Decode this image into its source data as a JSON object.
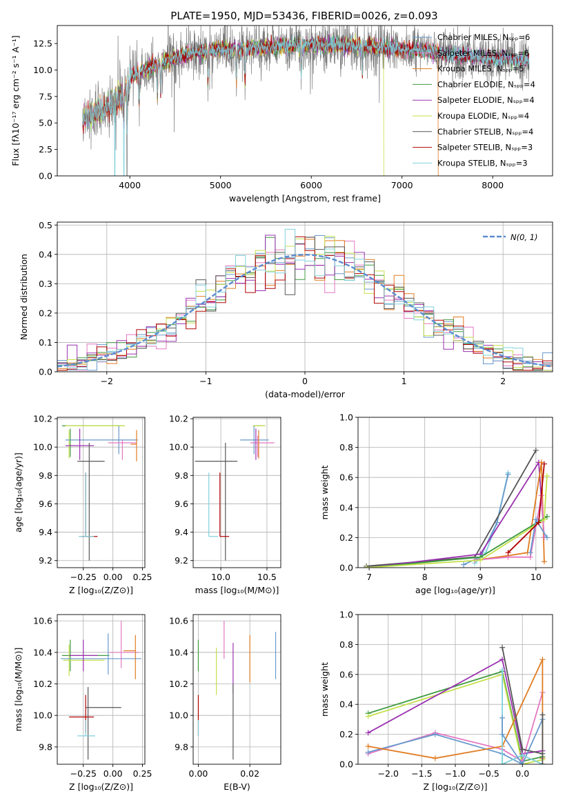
{
  "colors": {
    "palette": [
      "#777777",
      "#e377c2",
      "#ff7f0e",
      "#2ca02c",
      "#9467bd",
      "#bcbd22",
      "#444444",
      "#a00000",
      "#17becf"
    ],
    "overlay": [
      "#6699cc",
      "#e377c2",
      "#e07b20",
      "#3c9a3c",
      "#9b30b0",
      "#c4e04a",
      "#555555",
      "#b00000",
      "#80d0dc"
    ],
    "normal_curve": "#5b8bd0"
  },
  "chart_data": [
    {
      "id": "spectrum",
      "type": "line",
      "title": "PLATE=1950, MJD=53436, FIBERID=0026, z=0.093",
      "xlabel": "wavelength [Angstrom, rest frame]",
      "ylabel": "Flux [fλ10⁻¹⁷ erg cm⁻² s⁻¹ A⁻¹]",
      "xlim": [
        3200,
        8660
      ],
      "ylim": [
        0,
        14.2
      ],
      "xticks": [
        4000,
        5000,
        6000,
        7000,
        8000
      ],
      "yticks": [
        0.0,
        2.5,
        5.0,
        7.5,
        10.0,
        12.5
      ],
      "grid": false,
      "legend_position": "top-right",
      "legend": [
        {
          "label": "Chabrier MILES, Nₛₚₚ=6"
        },
        {
          "label": "Salpeter MILES, Nₛₚₚ=6"
        },
        {
          "label": "Kroupa MILES, Nₛₚₚ=5"
        },
        {
          "label": "Chabrier ELODIE, Nₛₚₚ=4"
        },
        {
          "label": "Salpeter ELODIE, Nₛₚₚ=4"
        },
        {
          "label": "Kroupa ELODIE, Nₛₚₚ=4"
        },
        {
          "label": "Chabrier STELIB, Nₛₚₚ=4"
        },
        {
          "label": "Salpeter STELIB, Nₛₚₚ=3"
        },
        {
          "label": "Kroupa STELIB, Nₛₚₚ=3"
        }
      ],
      "data_range": [
        3480,
        8400
      ],
      "continuum": {
        "x": [
          3480,
          3600,
          3800,
          4000,
          4200,
          4400,
          4600,
          4800,
          5000,
          5200,
          5500,
          6000,
          6500,
          7000,
          7400,
          7600,
          8000,
          8400
        ],
        "y": [
          6.2,
          6.8,
          7.6,
          9.4,
          10.2,
          10.9,
          11.4,
          11.8,
          11.9,
          12.0,
          12.2,
          12.4,
          12.3,
          12.0,
          11.6,
          11.4,
          11.1,
          10.9
        ]
      },
      "drops": [
        {
          "x": 3833,
          "series": 8
        },
        {
          "x": 3933,
          "series": 8
        },
        {
          "x": 3968,
          "series": 0
        },
        {
          "x": 6800,
          "series": 5
        },
        {
          "x": 7400,
          "series": 2
        }
      ]
    },
    {
      "id": "residuals",
      "type": "histogram",
      "xlabel": "(data-model)/error",
      "ylabel": "Normed distribution",
      "xlim": [
        -2.5,
        2.5
      ],
      "ylim": [
        0,
        0.51
      ],
      "xticks": [
        -2,
        -1,
        0,
        1,
        2
      ],
      "yticks": [
        0.0,
        0.1,
        0.2,
        0.3,
        0.4,
        0.5
      ],
      "grid": true,
      "bin_width": 0.1,
      "legend_position": "top-right",
      "legend": "N(0, 1)",
      "normal": {
        "mean": 0,
        "sigma": 1
      }
    },
    {
      "id": "age-vs-Z",
      "type": "errorbar",
      "xlabel": "Z [log₁₀(Z/Z⊙)]",
      "ylabel": "age  [log₁₀(age/yr)]",
      "xlim": [
        -0.47,
        0.27
      ],
      "ylim": [
        9.15,
        10.21
      ],
      "xticks": [
        -0.25,
        0.0,
        0.25
      ],
      "xticklabels": [
        "−0.25",
        "0.00",
        "0.25"
      ],
      "yticks": [
        9.2,
        9.4,
        9.6,
        9.8,
        10.0,
        10.2
      ],
      "grid": true,
      "points": [
        {
          "x": -0.1,
          "y": 10.15,
          "xerr": [
            0.33,
            0.2
          ],
          "yerr": [
            0,
            0
          ],
          "series": 3
        },
        {
          "x": -0.1,
          "y": 10.15,
          "xerr": [
            0.3,
            0.2
          ],
          "yerr": [
            0,
            0
          ],
          "series": 5
        },
        {
          "x": -0.36,
          "y": 10.13,
          "xerr": [
            0,
            0
          ],
          "yerr": [
            0.2,
            0
          ],
          "series": 3
        },
        {
          "x": -0.37,
          "y": 10.12,
          "xerr": [
            0,
            0
          ],
          "yerr": [
            0.2,
            0
          ],
          "series": 5
        },
        {
          "x": -0.07,
          "y": 10.05,
          "xerr": [
            0.33,
            0.28
          ],
          "yerr": [
            0,
            0
          ],
          "series": 0
        },
        {
          "x": 0.05,
          "y": 10.05,
          "xerr": [
            0,
            0
          ],
          "yerr": [
            0.1,
            0.1
          ],
          "series": 0
        },
        {
          "x": 0.05,
          "y": 10.03,
          "xerr": [
            0.09,
            0.15
          ],
          "yerr": [
            0,
            0
          ],
          "series": 1
        },
        {
          "x": 0.08,
          "y": 10.03,
          "xerr": [
            0,
            0
          ],
          "yerr": [
            0.12,
            0.02
          ],
          "series": 1
        },
        {
          "x": 0.2,
          "y": 10.02,
          "xerr": [
            0.05,
            0
          ],
          "yerr": [
            0.12,
            0.1
          ],
          "series": 2
        },
        {
          "x": -0.28,
          "y": 10.01,
          "xerr": [
            0.12,
            0.12
          ],
          "yerr": [
            0.1,
            0.12
          ],
          "series": 4
        },
        {
          "x": -0.2,
          "y": 9.9,
          "xerr": [
            0.1,
            0.13
          ],
          "yerr": [
            0.7,
            0.13
          ],
          "series": 6
        },
        {
          "x": -0.23,
          "y": 9.37,
          "xerr": [
            0.04,
            0.1
          ],
          "yerr": [
            0,
            0.45
          ],
          "series": 7
        },
        {
          "x": -0.23,
          "y": 9.37,
          "xerr": [
            0.06,
            0.07
          ],
          "yerr": [
            0,
            0.45
          ],
          "series": 8
        }
      ]
    },
    {
      "id": "age-vs-mass",
      "type": "errorbar",
      "xlabel": "mass [log₁₀(M/M⊙)]",
      "ylabel": "",
      "xlim": [
        9.7,
        10.65
      ],
      "ylim": [
        9.15,
        10.21
      ],
      "xticks": [
        10.0,
        10.5
      ],
      "xticklabels": [
        "10.0",
        "10.5"
      ],
      "yticks": [
        9.2,
        9.4,
        9.6,
        9.8,
        10.0,
        10.2
      ],
      "grid": true,
      "points": [
        {
          "x": 10.35,
          "y": 10.15,
          "xerr": [
            0.0,
            0.13
          ],
          "yerr": [
            0,
            0
          ],
          "series": 3
        },
        {
          "x": 10.35,
          "y": 10.15,
          "xerr": [
            0.0,
            0.13
          ],
          "yerr": [
            0,
            0
          ],
          "series": 5
        },
        {
          "x": 10.36,
          "y": 10.05,
          "xerr": [
            0.15,
            0.16
          ],
          "yerr": [
            0.1,
            0.1
          ],
          "series": 0
        },
        {
          "x": 10.4,
          "y": 10.03,
          "xerr": [
            0.08,
            0.18
          ],
          "yerr": [
            0.1,
            0.05
          ],
          "series": 1
        },
        {
          "x": 10.41,
          "y": 10.02,
          "xerr": [
            0,
            0
          ],
          "yerr": [
            0.1,
            0.1
          ],
          "series": 2
        },
        {
          "x": 10.38,
          "y": 10.01,
          "xerr": [
            0,
            0
          ],
          "yerr": [
            0.1,
            0.12
          ],
          "series": 4
        },
        {
          "x": 10.05,
          "y": 9.9,
          "xerr": [
            0.33,
            0.13
          ],
          "yerr": [
            0.7,
            0.13
          ],
          "series": 6
        },
        {
          "x": 9.99,
          "y": 9.37,
          "xerr": [
            0,
            0.1
          ],
          "yerr": [
            0,
            0.45
          ],
          "series": 7
        },
        {
          "x": 9.87,
          "y": 9.37,
          "xerr": [
            0,
            0.1
          ],
          "yerr": [
            0,
            0.45
          ],
          "series": 8
        }
      ]
    },
    {
      "id": "mass-weight-vs-age",
      "type": "line",
      "xlabel": "age  [log₁₀(age/yr)]",
      "ylabel": "mass weight",
      "xlim": [
        6.8,
        10.3
      ],
      "ylim": [
        0,
        1.0
      ],
      "xticks": [
        7,
        8,
        9,
        10
      ],
      "yticks": [
        0.0,
        0.2,
        0.4,
        0.6,
        0.8,
        1.0
      ],
      "grid": true,
      "series": [
        {
          "color": 8,
          "x": [
            8.9,
            9.1,
            9.3,
            9.5
          ],
          "y": [
            0.03,
            0.1,
            0.3,
            0.63
          ]
        },
        {
          "color": 0,
          "x": [
            8.7,
            9.0,
            9.3,
            9.5
          ],
          "y": [
            0.02,
            0.07,
            0.3,
            0.62
          ]
        },
        {
          "color": 6,
          "x": [
            6.95,
            8.9,
            10.0
          ],
          "y": [
            0.01,
            0.07,
            0.78
          ]
        },
        {
          "color": 4,
          "x": [
            6.95,
            9.0,
            10.05,
            10.15
          ],
          "y": [
            0.0,
            0.09,
            0.7,
            0.2
          ]
        },
        {
          "color": 2,
          "x": [
            8.9,
            9.5,
            9.85,
            10.1,
            10.15
          ],
          "y": [
            0.05,
            0.08,
            0.1,
            0.7,
            0.04
          ]
        },
        {
          "color": 1,
          "x": [
            8.9,
            9.5,
            9.9,
            10.1,
            10.15
          ],
          "y": [
            0.05,
            0.07,
            0.07,
            0.48,
            0.2
          ]
        },
        {
          "color": 3,
          "x": [
            6.95,
            9.0,
            10.2
          ],
          "y": [
            0.0,
            0.07,
            0.34
          ]
        },
        {
          "color": 5,
          "x": [
            6.95,
            9.0,
            10.15,
            10.2
          ],
          "y": [
            0.0,
            0.05,
            0.32,
            0.61
          ]
        },
        {
          "color": 0,
          "x": [
            9.9,
            10.0,
            10.2
          ],
          "y": [
            0.1,
            0.32,
            0.2
          ]
        },
        {
          "color": 7,
          "x": [
            9.5,
            10.05,
            10.15
          ],
          "y": [
            0.1,
            0.3,
            0.69
          ]
        }
      ]
    },
    {
      "id": "mass-vs-Z",
      "type": "errorbar",
      "xlabel": "Z [log₁₀(Z/Z⊙)]",
      "ylabel": "mass [log₁₀(M/M⊙)]",
      "xlim": [
        -0.47,
        0.27
      ],
      "ylim": [
        9.69,
        10.64
      ],
      "xticks": [
        -0.25,
        0.0,
        0.25
      ],
      "xticklabels": [
        "−0.25",
        "0.00",
        "0.25"
      ],
      "yticks": [
        9.8,
        10.0,
        10.2,
        10.4,
        10.6
      ],
      "grid": true,
      "points": [
        {
          "x": -0.36,
          "y": 10.38,
          "xerr": [
            0.07,
            0.33
          ],
          "yerr": [
            0.1,
            0.1
          ],
          "series": 3
        },
        {
          "x": -0.37,
          "y": 10.35,
          "xerr": [
            0.05,
            0.3
          ],
          "yerr": [
            0.1,
            0.1
          ],
          "series": 5
        },
        {
          "x": -0.04,
          "y": 10.36,
          "xerr": [
            0.4,
            0.28
          ],
          "yerr": [
            0.1,
            0.16
          ],
          "series": 0
        },
        {
          "x": 0.07,
          "y": 10.4,
          "xerr": [
            0.1,
            0.15
          ],
          "yerr": [
            0.1,
            0.2
          ],
          "series": 1
        },
        {
          "x": 0.19,
          "y": 10.41,
          "xerr": [
            0.1,
            0.0
          ],
          "yerr": [
            0.18,
            0.1
          ],
          "series": 2
        },
        {
          "x": -0.25,
          "y": 10.38,
          "xerr": [
            0.12,
            0.12
          ],
          "yerr": [
            0.1,
            0.1
          ],
          "series": 4
        },
        {
          "x": -0.21,
          "y": 10.05,
          "xerr": [
            0.02,
            0.28
          ],
          "yerr": [
            0.33,
            0.13
          ],
          "series": 6
        },
        {
          "x": -0.23,
          "y": 9.99,
          "xerr": [
            0.14,
            0.07
          ],
          "yerr": [
            0.1,
            0.14
          ],
          "series": 7
        },
        {
          "x": -0.23,
          "y": 9.87,
          "xerr": [
            0.07,
            0.08
          ],
          "yerr": [
            0.0,
            0.1
          ],
          "series": 8
        }
      ]
    },
    {
      "id": "mass-vs-EBV",
      "type": "errorbar",
      "xlabel": "E(B-V)",
      "ylabel": "",
      "xlim": [
        -0.002,
        0.032
      ],
      "ylim": [
        9.69,
        10.64
      ],
      "xticks": [
        0.0,
        0.02
      ],
      "xticklabels": [
        "0.00",
        "0.02"
      ],
      "yticks": [
        9.8,
        10.0,
        10.2,
        10.4,
        10.6
      ],
      "grid": true,
      "points": [
        {
          "x": 0.0,
          "y": 10.38,
          "xerr": [
            0,
            0
          ],
          "yerr": [
            0.1,
            0.1
          ],
          "series": 3
        },
        {
          "x": 0.0,
          "y": 10.0,
          "xerr": [
            0,
            0
          ],
          "yerr": [
            0.13,
            0.13
          ],
          "series": 7
        },
        {
          "x": 0.0,
          "y": 9.87,
          "xerr": [
            0,
            0
          ],
          "yerr": [
            0.0,
            0.1
          ],
          "series": 8
        },
        {
          "x": 0.007,
          "y": 10.28,
          "xerr": [
            0,
            0
          ],
          "yerr": [
            0.15,
            0.15
          ],
          "series": 5
        },
        {
          "x": 0.01,
          "y": 10.48,
          "xerr": [
            0,
            0
          ],
          "yerr": [
            0.12,
            0.12
          ],
          "series": 1
        },
        {
          "x": 0.0135,
          "y": 10.3,
          "xerr": [
            0,
            0
          ],
          "yerr": [
            0.16,
            0.16
          ],
          "series": 4
        },
        {
          "x": 0.0135,
          "y": 10.0,
          "xerr": [
            0,
            0
          ],
          "yerr": [
            0.28,
            0.2
          ],
          "series": 6
        },
        {
          "x": 0.02,
          "y": 10.36,
          "xerr": [
            0,
            0
          ],
          "yerr": [
            0.15,
            0.15
          ],
          "series": 2
        },
        {
          "x": 0.03,
          "y": 10.38,
          "xerr": [
            0,
            0
          ],
          "yerr": [
            0.15,
            0.15
          ],
          "series": 0
        }
      ]
    },
    {
      "id": "mass-weight-vs-Z",
      "type": "line",
      "xlabel": "Z [log₁₀(Z/Z⊙)]",
      "ylabel": "mass weight",
      "xlim": [
        -2.45,
        0.45
      ],
      "ylim": [
        0,
        1.0
      ],
      "xticks": [
        -2.0,
        -1.5,
        -1.0,
        -0.5,
        0.0
      ],
      "xticklabels": [
        "−2.0",
        "−1.5",
        "−1.0",
        "−0.5",
        "0.0"
      ],
      "yticks": [
        0.0,
        0.2,
        0.4,
        0.6,
        0.8,
        1.0
      ],
      "grid": true,
      "series": [
        {
          "color": 3,
          "x": [
            -2.3,
            -0.3,
            0.0,
            0.3
          ],
          "y": [
            0.34,
            0.62,
            0.02,
            0.05
          ]
        },
        {
          "color": 5,
          "x": [
            -2.3,
            -0.3,
            0.0,
            0.3
          ],
          "y": [
            0.32,
            0.6,
            0.0,
            0.03
          ]
        },
        {
          "color": 4,
          "x": [
            -2.3,
            -0.3,
            0.0,
            0.3
          ],
          "y": [
            0.21,
            0.7,
            0.07,
            0.09
          ]
        },
        {
          "color": 1,
          "x": [
            -2.3,
            -1.3,
            -0.3,
            0.0,
            0.3
          ],
          "y": [
            0.07,
            0.21,
            0.1,
            0.02,
            0.48
          ]
        },
        {
          "color": 0,
          "x": [
            -2.3,
            -1.3,
            -0.3,
            0.0,
            0.3
          ],
          "y": [
            0.08,
            0.2,
            0.07,
            0.0,
            0.3
          ]
        },
        {
          "color": 2,
          "x": [
            -2.3,
            -1.3,
            -0.3,
            0.3,
            0.3
          ],
          "y": [
            0.12,
            0.04,
            0.12,
            0.7,
            0.04
          ]
        },
        {
          "color": 6,
          "x": [
            -0.3,
            0.0,
            0.3
          ],
          "y": [
            0.78,
            0.1,
            0.07
          ]
        },
        {
          "color": 8,
          "x": [
            -0.3,
            -0.3,
            0.0,
            0.3
          ],
          "y": [
            0.63,
            0.0,
            0.06,
            0.0
          ]
        },
        {
          "color": 0,
          "x": [
            -0.3,
            -0.3,
            0.0
          ],
          "y": [
            0.31,
            0.2,
            0.0
          ]
        },
        {
          "color": 6,
          "x": [
            0.3,
            0.3
          ],
          "y": [
            0.33,
            0.0
          ]
        }
      ]
    }
  ]
}
